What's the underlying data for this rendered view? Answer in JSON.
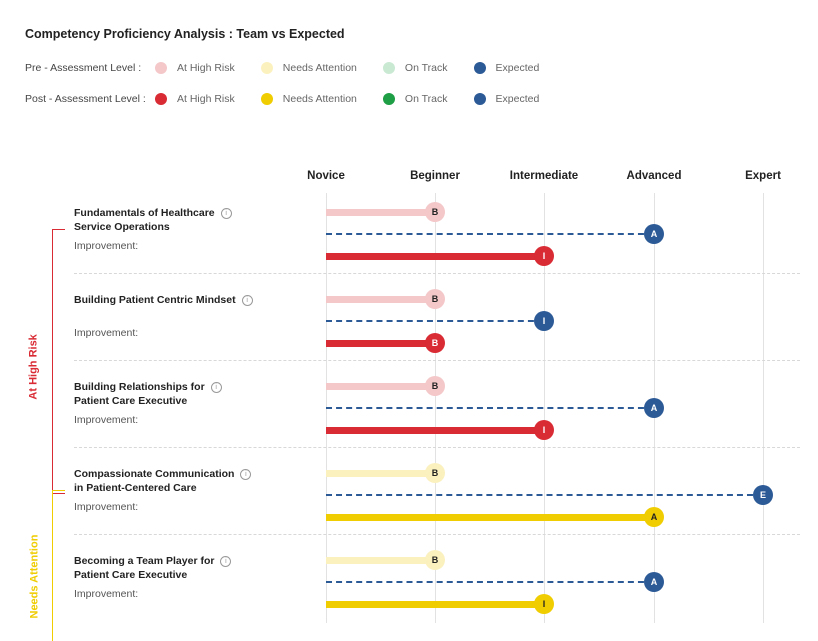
{
  "chart_data": {
    "type": "table",
    "title": "Competency Proficiency Analysis : Team vs Expected",
    "levels": [
      "Novice",
      "Beginner",
      "Intermediate",
      "Advanced",
      "Expert"
    ],
    "legend": [
      {
        "label": "Pre - Assessment Level :",
        "items": [
          {
            "name": "At High Risk",
            "color": "#f4c7c9"
          },
          {
            "name": "Needs Attention",
            "color": "#fbf1bf"
          },
          {
            "name": "On Track",
            "color": "#c9e9d3"
          },
          {
            "name": "Expected",
            "color": "#2c5a96"
          }
        ]
      },
      {
        "label": "Post - Assessment Level :",
        "items": [
          {
            "name": "At High Risk",
            "color": "#d92b34"
          },
          {
            "name": "Needs Attention",
            "color": "#efcd00"
          },
          {
            "name": "On Track",
            "color": "#1e9e45"
          },
          {
            "name": "Expected",
            "color": "#2c5a96"
          }
        ]
      }
    ],
    "improvement_label": "Improvement:",
    "info_glyph": "i",
    "groups": [
      {
        "label": "At High Risk",
        "color": "#d92b34",
        "pre_color": "#f4c7c9",
        "post_color": "#d92b34",
        "competencies": [
          {
            "name_lines": [
              "Fundamentals of Healthcare",
              "Service Operations"
            ],
            "pre": 1,
            "pre_letter": "B",
            "expected": 3,
            "expected_letter": "A",
            "post": 2,
            "post_letter": "I"
          },
          {
            "name_lines": [
              "Building Patient Centric Mindset"
            ],
            "pre": 1,
            "pre_letter": "B",
            "expected": 2,
            "expected_letter": "I",
            "post": 1,
            "post_letter": "B"
          },
          {
            "name_lines": [
              "Building Relationships for",
              "Patient Care Executive"
            ],
            "pre": 1,
            "pre_letter": "B",
            "expected": 3,
            "expected_letter": "A",
            "post": 2,
            "post_letter": "I"
          }
        ]
      },
      {
        "label": "Needs Attention",
        "color": "#efcd00",
        "pre_color": "#fbf1bf",
        "post_color": "#efcd00",
        "competencies": [
          {
            "name_lines": [
              "Compassionate Communication",
              "in Patient-Centered Care"
            ],
            "pre": 1,
            "pre_letter": "B",
            "expected": 4,
            "expected_letter": "E",
            "post": 3,
            "post_letter": "A"
          },
          {
            "name_lines": [
              "Becoming a Team Player for",
              "Patient Care Executive"
            ],
            "pre": 1,
            "pre_letter": "B",
            "expected": 3,
            "expected_letter": "A",
            "post": 2,
            "post_letter": "I"
          }
        ]
      }
    ]
  }
}
